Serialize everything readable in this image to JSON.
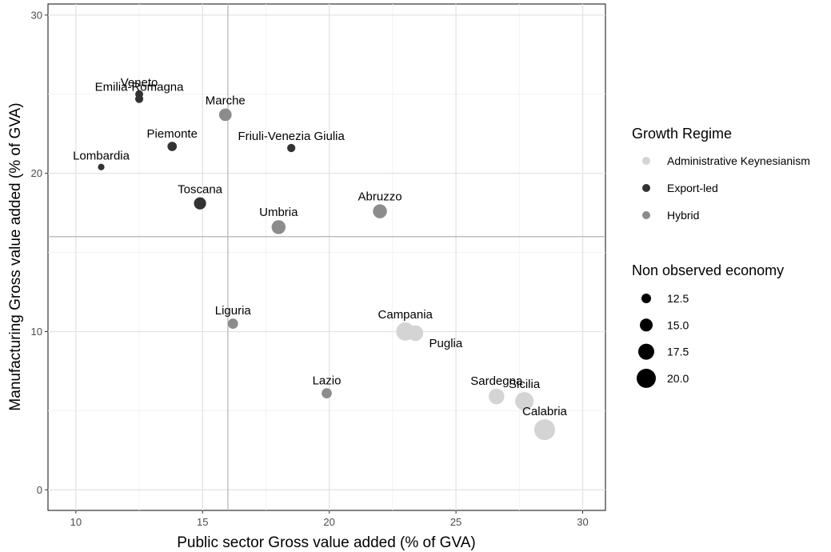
{
  "chart_data": {
    "type": "scatter",
    "xlabel": "Public sector Gross value added (% of GVA)",
    "ylabel": "Manufacturing Gross value added (% of GVA)",
    "xlim": [
      8.9,
      30.9
    ],
    "ylim": [
      -1.3,
      30.7
    ],
    "x_ticks": [
      "10",
      "15",
      "20",
      "25",
      "30"
    ],
    "y_ticks": [
      "0",
      "10",
      "20",
      "30"
    ],
    "grid": true,
    "reference_lines": {
      "x": 16,
      "y": 16
    },
    "legend_position": "right",
    "color_legend": {
      "title": "Growth Regime",
      "items": [
        {
          "label": "Administrative Keynesianism",
          "color": "#d4d4d4"
        },
        {
          "label": "Export-led",
          "color": "#333333"
        },
        {
          "label": "Hybrid",
          "color": "#8c8c8c"
        }
      ]
    },
    "size_legend": {
      "title": "Non observed economy",
      "items": [
        "12.5",
        "15.0",
        "17.5",
        "20.0"
      ],
      "values": [
        12.5,
        15.0,
        17.5,
        20.0
      ]
    },
    "points": [
      {
        "label": "Veneto",
        "x": 12.5,
        "y": 25.0,
        "size": 11.2,
        "regime": "Export-led"
      },
      {
        "label": "Emilia-Romagna",
        "x": 12.5,
        "y": 24.7,
        "size": 11.3,
        "regime": "Export-led"
      },
      {
        "label": "Marche",
        "x": 15.9,
        "y": 23.7,
        "size": 14.8,
        "regime": "Hybrid"
      },
      {
        "label": "Piemonte",
        "x": 13.8,
        "y": 21.7,
        "size": 12.3,
        "regime": "Export-led"
      },
      {
        "label": "Friuli-Venezia Giulia",
        "x": 18.5,
        "y": 21.6,
        "size": 11.4,
        "regime": "Export-led"
      },
      {
        "label": "Lombardia",
        "x": 11.0,
        "y": 20.4,
        "size": 10.1,
        "regime": "Export-led"
      },
      {
        "label": "Toscana",
        "x": 14.9,
        "y": 18.1,
        "size": 14.5,
        "regime": "Export-led"
      },
      {
        "label": "Abruzzo",
        "x": 22.0,
        "y": 17.6,
        "size": 15.9,
        "regime": "Hybrid"
      },
      {
        "label": "Umbria",
        "x": 18.0,
        "y": 16.6,
        "size": 15.9,
        "regime": "Hybrid"
      },
      {
        "label": "Liguria",
        "x": 16.2,
        "y": 10.5,
        "size": 13.0,
        "regime": "Hybrid"
      },
      {
        "label": "Campania",
        "x": 23.0,
        "y": 10.0,
        "size": 19.3,
        "regime": "Administrative Keynesianism"
      },
      {
        "label": "Puglia",
        "x": 23.4,
        "y": 9.9,
        "size": 17.2,
        "regime": "Administrative Keynesianism"
      },
      {
        "label": "Lazio",
        "x": 19.9,
        "y": 6.1,
        "size": 12.9,
        "regime": "Hybrid"
      },
      {
        "label": "Sardegna",
        "x": 26.6,
        "y": 5.9,
        "size": 17.2,
        "regime": "Administrative Keynesianism"
      },
      {
        "label": "Sicilia",
        "x": 27.7,
        "y": 5.6,
        "size": 19.4,
        "regime": "Administrative Keynesianism"
      },
      {
        "label": "Calabria",
        "x": 28.5,
        "y": 3.8,
        "size": 21.3,
        "regime": "Administrative Keynesianism"
      }
    ]
  }
}
